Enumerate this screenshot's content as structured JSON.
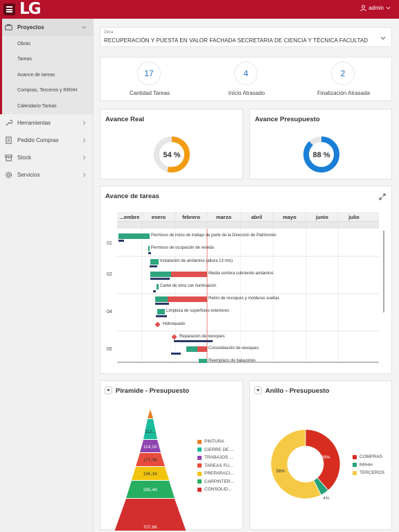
{
  "header": {
    "logo": "LG",
    "user": "admin"
  },
  "sidebar": {
    "active_section": "Proyectos",
    "sub_items": [
      "Obras",
      "Tareas",
      "Avance de tareas",
      "Compras, Terceros y RRHH",
      "Calendario Tareas"
    ],
    "items": [
      "Herramientas",
      "Pedido Compras",
      "Stock",
      "Servicios"
    ]
  },
  "obra": {
    "label": "Obra",
    "value": "RECUPERACIÓN Y PUESTA EN VALOR FACHADA SECRETARIA DE CIENCIA Y TÉCNICA FACULTAD"
  },
  "stats": [
    {
      "value": "17",
      "label": "Cantidad Tareas"
    },
    {
      "value": "4",
      "label": "Inicio Atrasado"
    },
    {
      "value": "2",
      "label": "Finalización Atrasada"
    }
  ],
  "avance_real": {
    "title": "Avance Real",
    "percent": 54,
    "label": "54 %",
    "color": "#f39c12"
  },
  "avance_presupuesto": {
    "title": "Avance Presupuesto",
    "percent": 88,
    "label": "88 %",
    "color": "#1a7fd6"
  },
  "gantt": {
    "title": "Avance de tareas",
    "months": [
      "...embre",
      "enero",
      "febrero",
      "marzo",
      "abril",
      "mayo",
      "junio",
      "julio"
    ],
    "row_groups": [
      "01",
      "02",
      "04",
      "05"
    ],
    "tasks": [
      "Permisos de inicio de trabajo de parte de la Dirección de Patrimonio",
      "Permisos de ocupación de vereda",
      "Instalación de andamios (altura 13 mts)",
      "Media sombra cubriendo andamios",
      "Cartel de obra con iluminación",
      "Retiro de revoques y molduras sueltas",
      "Limpieza de superficies exteriores",
      "Hidrolavado",
      "Reparación de revoques",
      "Consolidación de revoques.",
      "Reemplazo de balaustres"
    ]
  },
  "piramide": {
    "title": "Piramide - Presupuesto",
    "labels": [
      "112...",
      "114,1K",
      "177,0K",
      "196,1K",
      "285,4K",
      "707,6K"
    ],
    "legend": [
      {
        "name": "PINTURA",
        "color": "#e67e22"
      },
      {
        "name": "CIERRE DE ...",
        "color": "#1abc9c"
      },
      {
        "name": "TRABAJOS ...",
        "color": "#8e44ad"
      },
      {
        "name": "TAREAS FU...",
        "color": "#e74c3c"
      },
      {
        "name": "PREPARACI...",
        "color": "#f1c40f"
      },
      {
        "name": "CARPINTER...",
        "color": "#27ae60"
      },
      {
        "name": "CONSOLID...",
        "color": "#d32f2f"
      }
    ]
  },
  "anillo": {
    "title": "Anillo - Presupuesto",
    "slices": [
      {
        "name": "COMPRAS",
        "percent": 39,
        "label": "39%",
        "color": "#d62d20"
      },
      {
        "name": "RRHH",
        "percent": 4,
        "label": "4%",
        "color": "#27a27b"
      },
      {
        "name": "TERCEROS",
        "percent": 58,
        "label": "58%",
        "color": "#f6c945"
      }
    ]
  }
}
